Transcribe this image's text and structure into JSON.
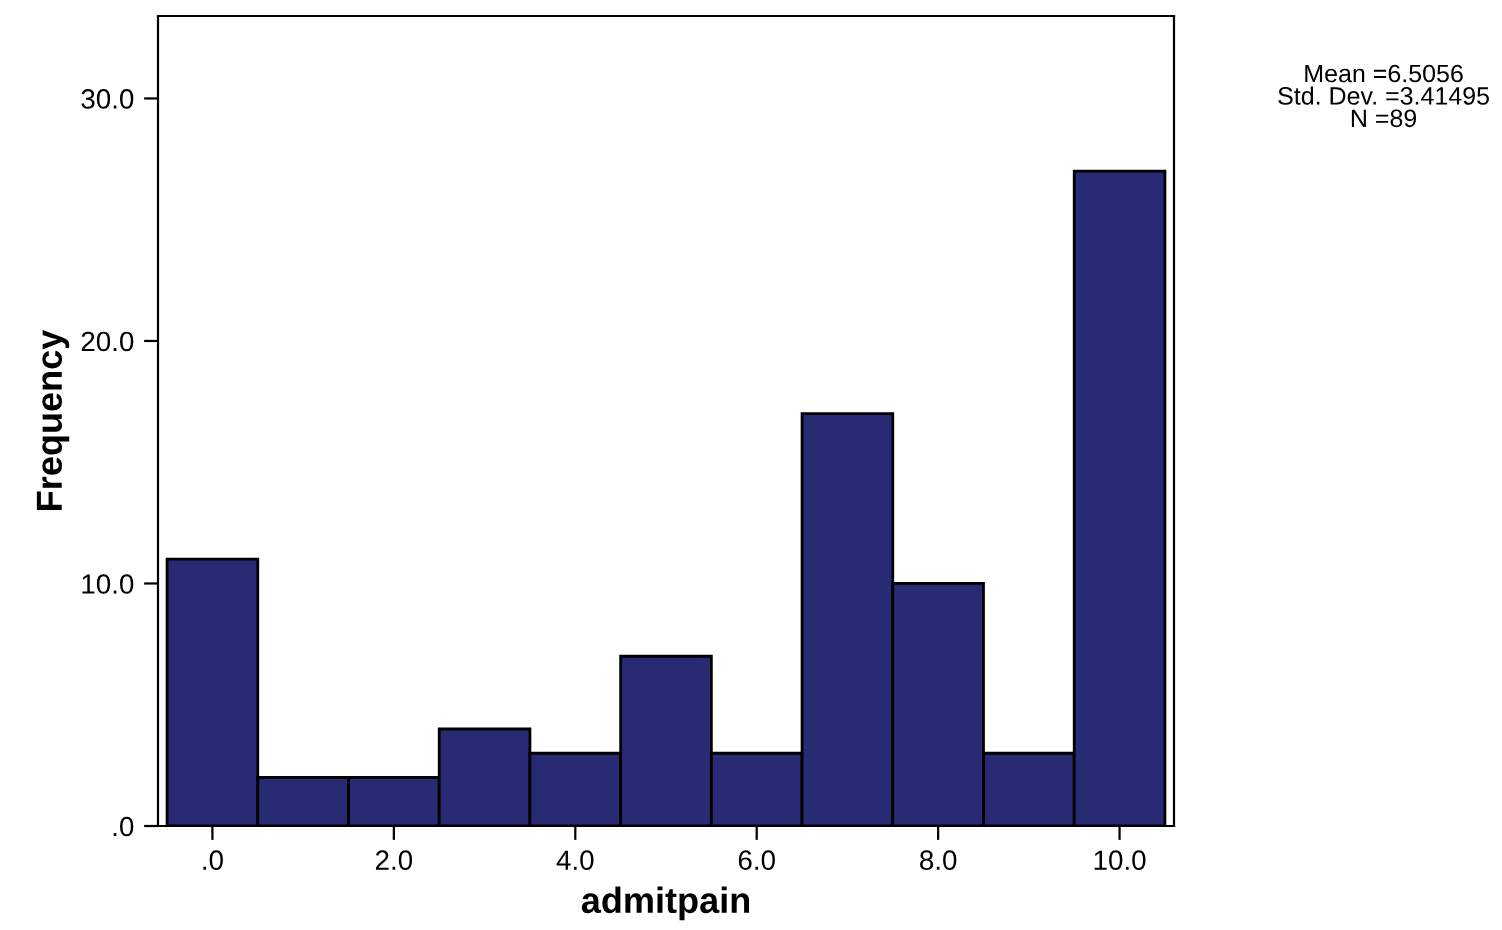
{
  "chart_data": {
    "type": "histogram",
    "xlabel": "admitpain",
    "ylabel": "Frequency",
    "bins": [
      -0.5,
      0.5,
      1.5,
      2.5,
      3.5,
      4.5,
      5.5,
      6.5,
      7.5,
      8.5,
      9.5,
      10.5
    ],
    "values": [
      11,
      2,
      2,
      4,
      3,
      7,
      3,
      17,
      10,
      3,
      27
    ],
    "color": "#282a73",
    "xlim": [
      -0.6,
      10.6
    ],
    "ylim": [
      0,
      33.4
    ],
    "xticks": [
      {
        "value": 0,
        "label": ".0"
      },
      {
        "value": 2,
        "label": "2.0"
      },
      {
        "value": 4,
        "label": "4.0"
      },
      {
        "value": 6,
        "label": "6.0"
      },
      {
        "value": 8,
        "label": "8.0"
      },
      {
        "value": 10,
        "label": "10.0"
      }
    ],
    "yticks": [
      {
        "value": 0,
        "label": ".0"
      },
      {
        "value": 10,
        "label": "10.0"
      },
      {
        "value": 20,
        "label": "20.0"
      },
      {
        "value": 30,
        "label": "30.0"
      }
    ],
    "annotations": [
      "Mean =6.5056\nStd. Dev. =3.41495\nN =89"
    ],
    "grid": false
  }
}
